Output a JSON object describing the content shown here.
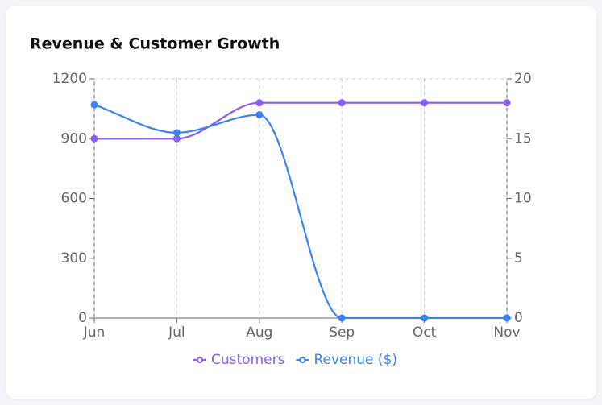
{
  "chart_data": {
    "type": "line",
    "title": "Revenue & Customer Growth",
    "categories": [
      "Jun",
      "Jul",
      "Aug",
      "Sep",
      "Oct",
      "Nov"
    ],
    "series": [
      {
        "name": "Customers",
        "color": "#8b5cf6",
        "axis": "y2",
        "values": [
          15,
          15,
          18,
          18,
          18,
          18
        ]
      },
      {
        "name": "Revenue ($)",
        "color": "#3b82f6",
        "values": [
          1070,
          930,
          1020,
          0,
          0,
          0
        ]
      }
    ],
    "ylim": [
      0,
      1200
    ],
    "yticks": [
      0,
      300,
      600,
      900,
      1200
    ],
    "y2lim": [
      0,
      20
    ],
    "y2ticks": [
      0,
      5,
      10,
      15,
      20
    ],
    "grid": true
  }
}
